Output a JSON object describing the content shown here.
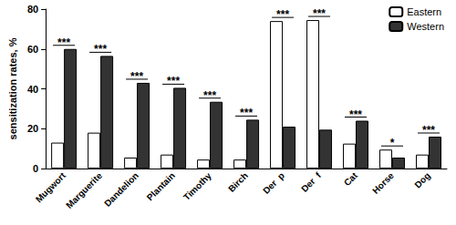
{
  "chart_data": {
    "type": "bar",
    "y_label": "sensitization rates, %",
    "categories": [
      "Mugwort",
      "Marguerite",
      "Dandelion",
      "Plantain",
      "Timothy",
      "Birch",
      "Der  p",
      "Der  f",
      "Cat",
      "Horse",
      "Dog"
    ],
    "series": [
      {
        "name": "Eastern",
        "color": "#ffffff",
        "values": [
          13,
          18,
          5.5,
          7,
          4.5,
          4.5,
          74,
          74.5,
          12.5,
          9.5,
          7
        ]
      },
      {
        "name": "Western",
        "color": "#333333",
        "values": [
          60,
          56.5,
          43,
          40.5,
          33.5,
          24.5,
          21,
          19.5,
          24,
          5.5,
          16
        ]
      }
    ],
    "annotations": [
      "***",
      "***",
      "***",
      "***",
      "***",
      "***",
      "***",
      "***",
      "***",
      "*",
      "***"
    ],
    "ylim": [
      0,
      80
    ],
    "yticks": [
      0,
      20,
      40,
      60,
      80
    ],
    "grid": false,
    "legend": "upper right"
  }
}
